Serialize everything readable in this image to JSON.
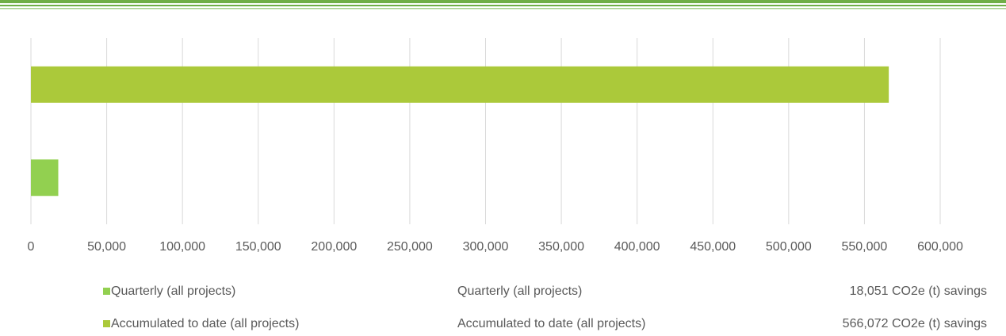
{
  "chart_data": {
    "type": "bar",
    "orientation": "horizontal",
    "series": [
      {
        "name": "Quarterly (all projects)",
        "color": "#92d050",
        "values": [
          18051
        ],
        "value_labels": [
          "18,051 CO2e (t) savings"
        ]
      },
      {
        "name": "Accumulated to date (all projects)",
        "color": "#abc93a",
        "values": [
          566072
        ],
        "value_labels": [
          "566,072 CO2e (t) savings"
        ]
      }
    ],
    "xlim": [
      0,
      600000
    ],
    "xticks": [
      0,
      {
        "value": 50000,
        "label": "50,000"
      },
      {
        "value": 100000,
        "label": "100,000"
      },
      {
        "value": 150000,
        "label": "150,000"
      },
      {
        "value": 200000,
        "label": "200,000"
      },
      {
        "value": 250000,
        "label": "250,000"
      },
      {
        "value": 300000,
        "label": "300,000"
      },
      {
        "value": 350000,
        "label": "350,000"
      },
      {
        "value": 400000,
        "label": "400,000"
      },
      {
        "value": 450000,
        "label": "450,000"
      },
      {
        "value": 500000,
        "label": "500,000"
      },
      {
        "value": 550000,
        "label": "550,000"
      },
      {
        "value": 600000,
        "label": "600,000"
      }
    ],
    "grid": true
  }
}
